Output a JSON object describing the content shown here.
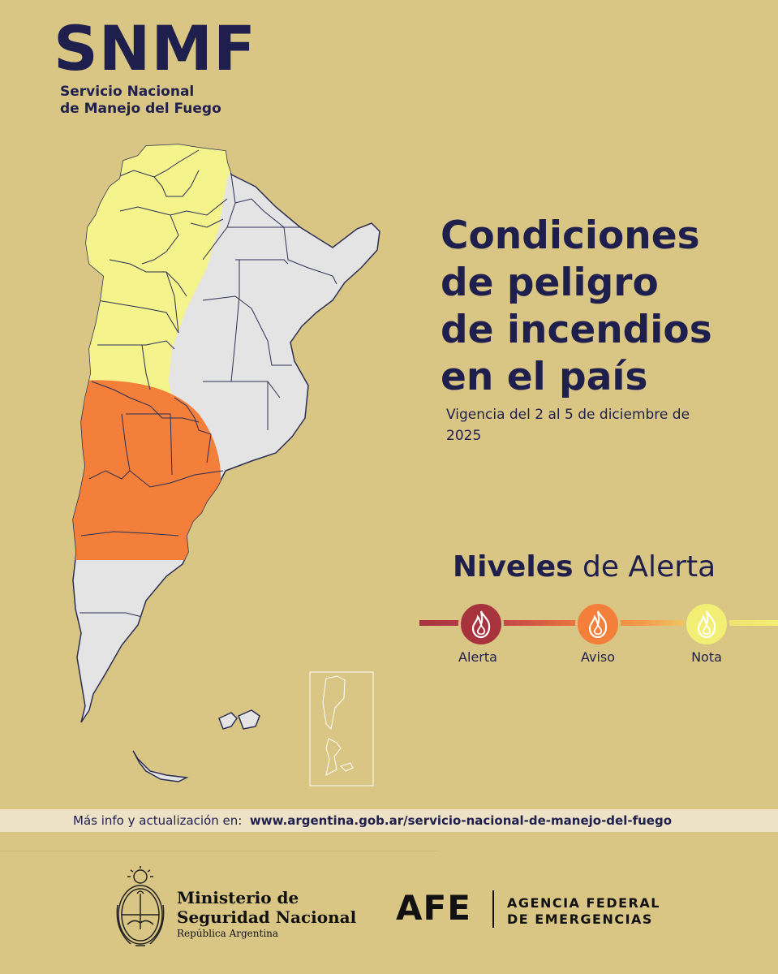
{
  "header": {
    "logo": "SNMF",
    "subtitle_line1": "Servicio Nacional",
    "subtitle_line2": "de Manejo del Fuego"
  },
  "title": {
    "line1": "Condiciones",
    "line2": "de peligro",
    "line3": "de incendios",
    "line4": "en el país"
  },
  "validity": "Vigencia del 2 al 5 de diciembre de 2025",
  "legend": {
    "title_bold": "Niveles",
    "title_rest": " de Alerta",
    "levels": [
      {
        "label": "Alerta",
        "color": "#a7343d",
        "icon": "fire-icon"
      },
      {
        "label": "Aviso",
        "color": "#f47f3a",
        "icon": "fire-icon"
      },
      {
        "label": "Nota",
        "color": "#f3ef74",
        "icon": "fire-icon"
      }
    ]
  },
  "map": {
    "zones": [
      {
        "level": "Nota",
        "color": "#f5f38c"
      },
      {
        "level": "Aviso",
        "color": "#f47f3a"
      },
      {
        "level": "Sin alerta",
        "color": "#e4e4e4"
      }
    ]
  },
  "info": {
    "prefix": "Más info y actualización en:",
    "url": "www.argentina.gob.ar/servicio-nacional-de-manejo-del-fuego"
  },
  "footer": {
    "ministry_line1": "Ministerio de",
    "ministry_line2": "Seguridad Nacional",
    "ministry_line3": "República Argentina",
    "agency_logo": "AFE",
    "agency_line1": "AGENCIA FEDERAL",
    "agency_line2": "DE EMERGENCIAS"
  }
}
